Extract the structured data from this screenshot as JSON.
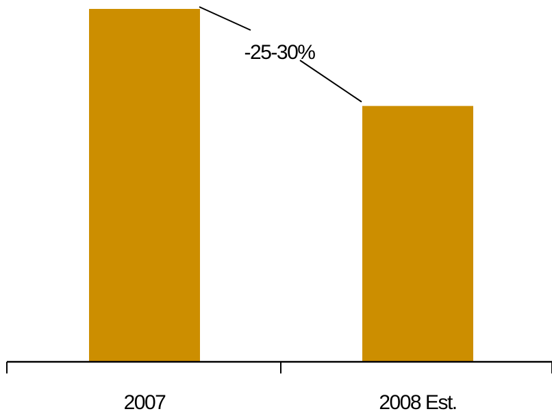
{
  "chart_data": {
    "type": "bar",
    "categories": [
      "2007",
      "2008 Est."
    ],
    "values": [
      100,
      72.5
    ],
    "ylim": [
      0,
      100
    ],
    "bar_color": "#CC8E00",
    "axis_color": "#000000",
    "grid": false,
    "annotation": {
      "text": "-25-30%",
      "from_category": "2007",
      "to_category": "2008 Est."
    }
  }
}
